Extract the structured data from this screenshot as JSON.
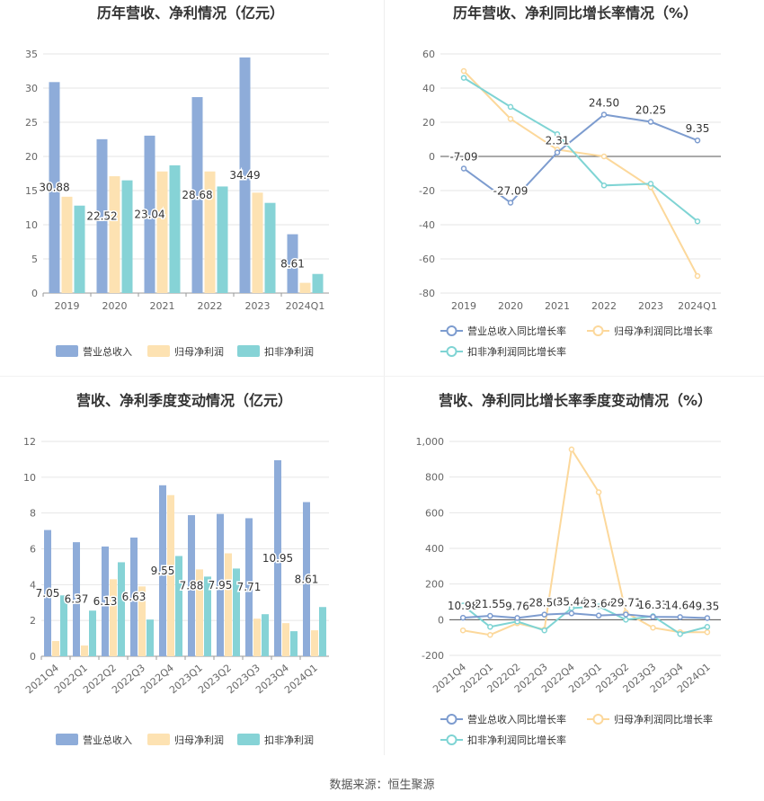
{
  "footer": {
    "label": "数据来源：",
    "source": "恒生聚源"
  },
  "colors": {
    "revenue": "#8eacd9",
    "net_profit": "#fde2b2",
    "deducted_profit": "#86d3d6",
    "line_revenue": "#7d9ccf",
    "line_net": "#fcd89b",
    "line_deducted": "#7fd4d4"
  },
  "chart_data": [
    {
      "id": "annual_values",
      "type": "bar",
      "title": "历年营收、净利情况（亿元）",
      "categories": [
        "2019",
        "2020",
        "2021",
        "2022",
        "2023",
        "2024Q1"
      ],
      "series": [
        {
          "name": "营业总收入",
          "values": [
            30.88,
            22.52,
            23.04,
            28.68,
            34.49,
            8.61
          ]
        },
        {
          "name": "归母净利润",
          "values": [
            14.1,
            17.1,
            17.8,
            17.8,
            14.7,
            1.5
          ]
        },
        {
          "name": "扣非净利润",
          "values": [
            12.8,
            16.5,
            18.7,
            15.6,
            13.2,
            2.8
          ]
        }
      ],
      "data_labels": [
        "30.88",
        "22.52",
        "23.04",
        "28.68",
        "34.49",
        "8.61"
      ],
      "yticks": [
        "0",
        "5",
        "10",
        "15",
        "20",
        "25",
        "30",
        "35"
      ],
      "ylim": [
        0,
        35
      ]
    },
    {
      "id": "annual_growth",
      "type": "line",
      "title": "历年营收、净利同比增长率情况（%）",
      "categories": [
        "2019",
        "2020",
        "2021",
        "2022",
        "2023",
        "2024Q1"
      ],
      "series": [
        {
          "name": "营业总收入同比增长率",
          "values": [
            -7.09,
            -27.09,
            2.31,
            24.5,
            20.25,
            9.35
          ]
        },
        {
          "name": "归母净利润同比增长率",
          "values": [
            50,
            22,
            4,
            0,
            -18,
            -70
          ]
        },
        {
          "name": "扣非净利润同比增长率",
          "values": [
            46,
            29,
            13,
            -17,
            -16,
            -38
          ]
        }
      ],
      "data_labels": [
        "-7.09",
        "-27.09",
        "2.31",
        "24.50",
        "20.25",
        "9.35"
      ],
      "yticks": [
        "-80",
        "-60",
        "-40",
        "-20",
        "0",
        "20",
        "40",
        "60"
      ],
      "ylim": [
        -80,
        60
      ]
    },
    {
      "id": "quarterly_values",
      "type": "bar",
      "title": "营收、净利季度变动情况（亿元）",
      "categories": [
        "2021Q4",
        "2022Q1",
        "2022Q2",
        "2022Q3",
        "2022Q4",
        "2023Q1",
        "2023Q2",
        "2023Q3",
        "2023Q4",
        "2024Q1"
      ],
      "series": [
        {
          "name": "营业总收入",
          "values": [
            7.05,
            6.37,
            6.13,
            6.63,
            9.55,
            7.88,
            7.95,
            7.71,
            10.95,
            8.61
          ]
        },
        {
          "name": "归母净利润",
          "values": [
            0.85,
            0.6,
            4.3,
            3.9,
            9.0,
            4.85,
            5.75,
            2.1,
            1.85,
            1.45
          ]
        },
        {
          "name": "扣非净利润",
          "values": [
            3.4,
            2.55,
            5.25,
            2.05,
            5.6,
            4.45,
            4.9,
            2.35,
            1.4,
            2.75
          ]
        }
      ],
      "data_labels": [
        "7.05",
        "6.37",
        "6.13",
        "6.63",
        "9.55",
        "7.88",
        "7.95",
        "7.71",
        "10.95",
        "8.61"
      ],
      "yticks": [
        "0",
        "2",
        "4",
        "6",
        "8",
        "10",
        "12"
      ],
      "ylim": [
        0,
        12
      ]
    },
    {
      "id": "quarterly_growth",
      "type": "line",
      "title": "营收、净利同比增长率季度变动情况（%）",
      "categories": [
        "2021Q4",
        "2022Q1",
        "2022Q2",
        "2022Q3",
        "2022Q4",
        "2023Q1",
        "2023Q2",
        "2023Q3",
        "2023Q4",
        "2024Q1"
      ],
      "series": [
        {
          "name": "营业总收入同比增长率",
          "values": [
            10.98,
            21.55,
            9.76,
            28.5,
            35.44,
            23.64,
            29.71,
            16.33,
            14.64,
            9.35
          ]
        },
        {
          "name": "归母净利润同比增长率",
          "values": [
            -60,
            -85,
            -20,
            -55,
            955,
            715,
            40,
            -45,
            -70,
            -70
          ]
        },
        {
          "name": "扣非净利润同比增长率",
          "values": [
            80,
            -40,
            -10,
            -60,
            65,
            75,
            0,
            20,
            -80,
            -40
          ]
        }
      ],
      "data_labels": [
        "10.98",
        "21.55",
        "9.76",
        "28.50",
        "35.44",
        "23.64",
        "29.71",
        "16.33",
        "14.64",
        "9.35"
      ],
      "yticks": [
        "-200",
        "0",
        "200",
        "400",
        "600",
        "800",
        "1,000"
      ],
      "ylim": [
        -200,
        1000
      ]
    }
  ]
}
